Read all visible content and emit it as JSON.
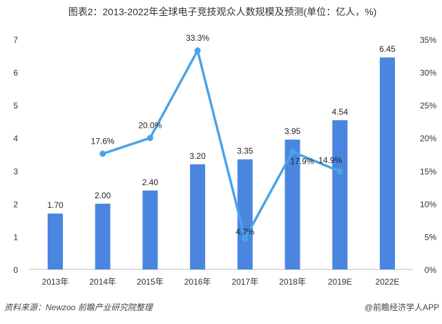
{
  "chart_data": {
    "type": "bar",
    "title": "图表2：2013-2022年全球电子竞技观众人数规模及预测(单位：亿人，%)",
    "categories": [
      "2013年",
      "2014年",
      "2015年",
      "2016年",
      "2017年",
      "2018年",
      "2019E",
      "2022E"
    ],
    "series": [
      {
        "name": "观众人数(亿人)",
        "type": "bar",
        "axis": "left",
        "values": [
          1.7,
          2.0,
          2.4,
          3.2,
          3.35,
          3.95,
          4.54,
          6.45
        ],
        "labels": [
          "1.70",
          "2.00",
          "2.40",
          "3.20",
          "3.35",
          "3.95",
          "4.54",
          "6.45"
        ]
      },
      {
        "name": "增速(%)",
        "type": "line",
        "axis": "right",
        "values": [
          null,
          17.6,
          20.0,
          33.3,
          4.7,
          17.9,
          14.9,
          null
        ],
        "labels": [
          "",
          "17.6%",
          "20.0%",
          "33.3%",
          "4.7%",
          "17.9%",
          "14.9%",
          ""
        ]
      }
    ],
    "ylim": [
      0,
      7
    ],
    "y_ticks": [
      "0",
      "1",
      "2",
      "3",
      "4",
      "5",
      "6",
      "7"
    ],
    "y2lim": [
      0,
      35
    ],
    "y2_ticks": [
      "0%",
      "5%",
      "10%",
      "15%",
      "20%",
      "25%",
      "30%",
      "35%"
    ],
    "grid": false,
    "colors": {
      "bar": "#4a86e0",
      "line": "#4aa3e8"
    }
  },
  "footer": {
    "source": "资料来源：Newzoo 前瞻产业研究院整理",
    "credit": "@前瞻经济学人APP"
  }
}
